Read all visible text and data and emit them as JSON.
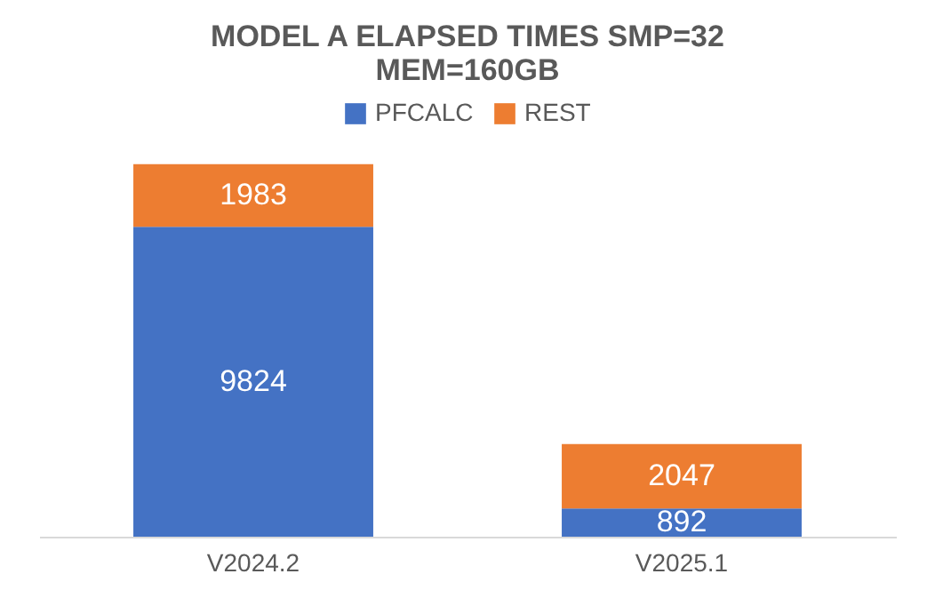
{
  "chart_data": {
    "type": "bar",
    "title": "MODEL A ELAPSED TIMES SMP=32",
    "subtitle": "MEM=160GB",
    "categories": [
      "V2024.2",
      "V2025.1"
    ],
    "stacked": true,
    "data_labels": true,
    "legend": "top",
    "series": [
      {
        "name": "PFCALC",
        "color": "#4472c4",
        "values": [
          9824,
          892
        ]
      },
      {
        "name": "REST",
        "color": "#ed7d31",
        "values": [
          1983,
          2047
        ]
      }
    ]
  }
}
